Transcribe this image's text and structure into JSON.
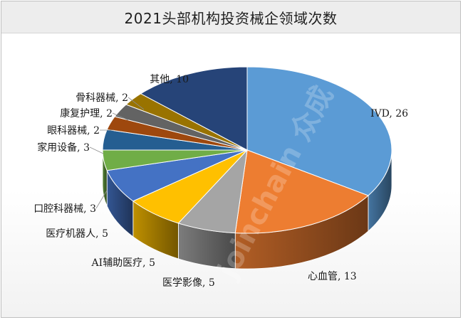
{
  "chart": {
    "title": "2021头部机构投资械企领域次数",
    "watermark": "joinchain 众成"
  },
  "chart_data": {
    "type": "pie",
    "title": "2021头部机构投资械企领域次数",
    "slices": [
      {
        "label": "IVD",
        "value": 26,
        "color": "#5b9bd5"
      },
      {
        "label": "心血管",
        "value": 13,
        "color": "#ed7d31"
      },
      {
        "label": "医学影像",
        "value": 5,
        "color": "#a5a5a5"
      },
      {
        "label": "AI辅助医疗",
        "value": 5,
        "color": "#ffc000"
      },
      {
        "label": "医疗机器人",
        "value": 5,
        "color": "#4472c4"
      },
      {
        "label": "口腔科器械",
        "value": 3,
        "color": "#70ad47"
      },
      {
        "label": "家用设备",
        "value": 3,
        "color": "#255e91"
      },
      {
        "label": "眼科器械",
        "value": 2,
        "color": "#9e480e"
      },
      {
        "label": "康复护理",
        "value": 2,
        "color": "#636363"
      },
      {
        "label": "骨科器械",
        "value": 2,
        "color": "#997300"
      },
      {
        "label": "其他",
        "value": 10,
        "color": "#264478"
      }
    ],
    "data_labels": [
      "IVD, 26",
      "心血管, 13",
      "医学影像, 5",
      "AI辅助医疗, 5",
      "医疗机器人, 5",
      "口腔科器械, 3",
      "家用设备, 3",
      "眼科器械, 2",
      "康复护理, 2",
      "骨科器械, 2",
      "其他, 10"
    ],
    "legend": "none",
    "style": "3d-pie"
  }
}
